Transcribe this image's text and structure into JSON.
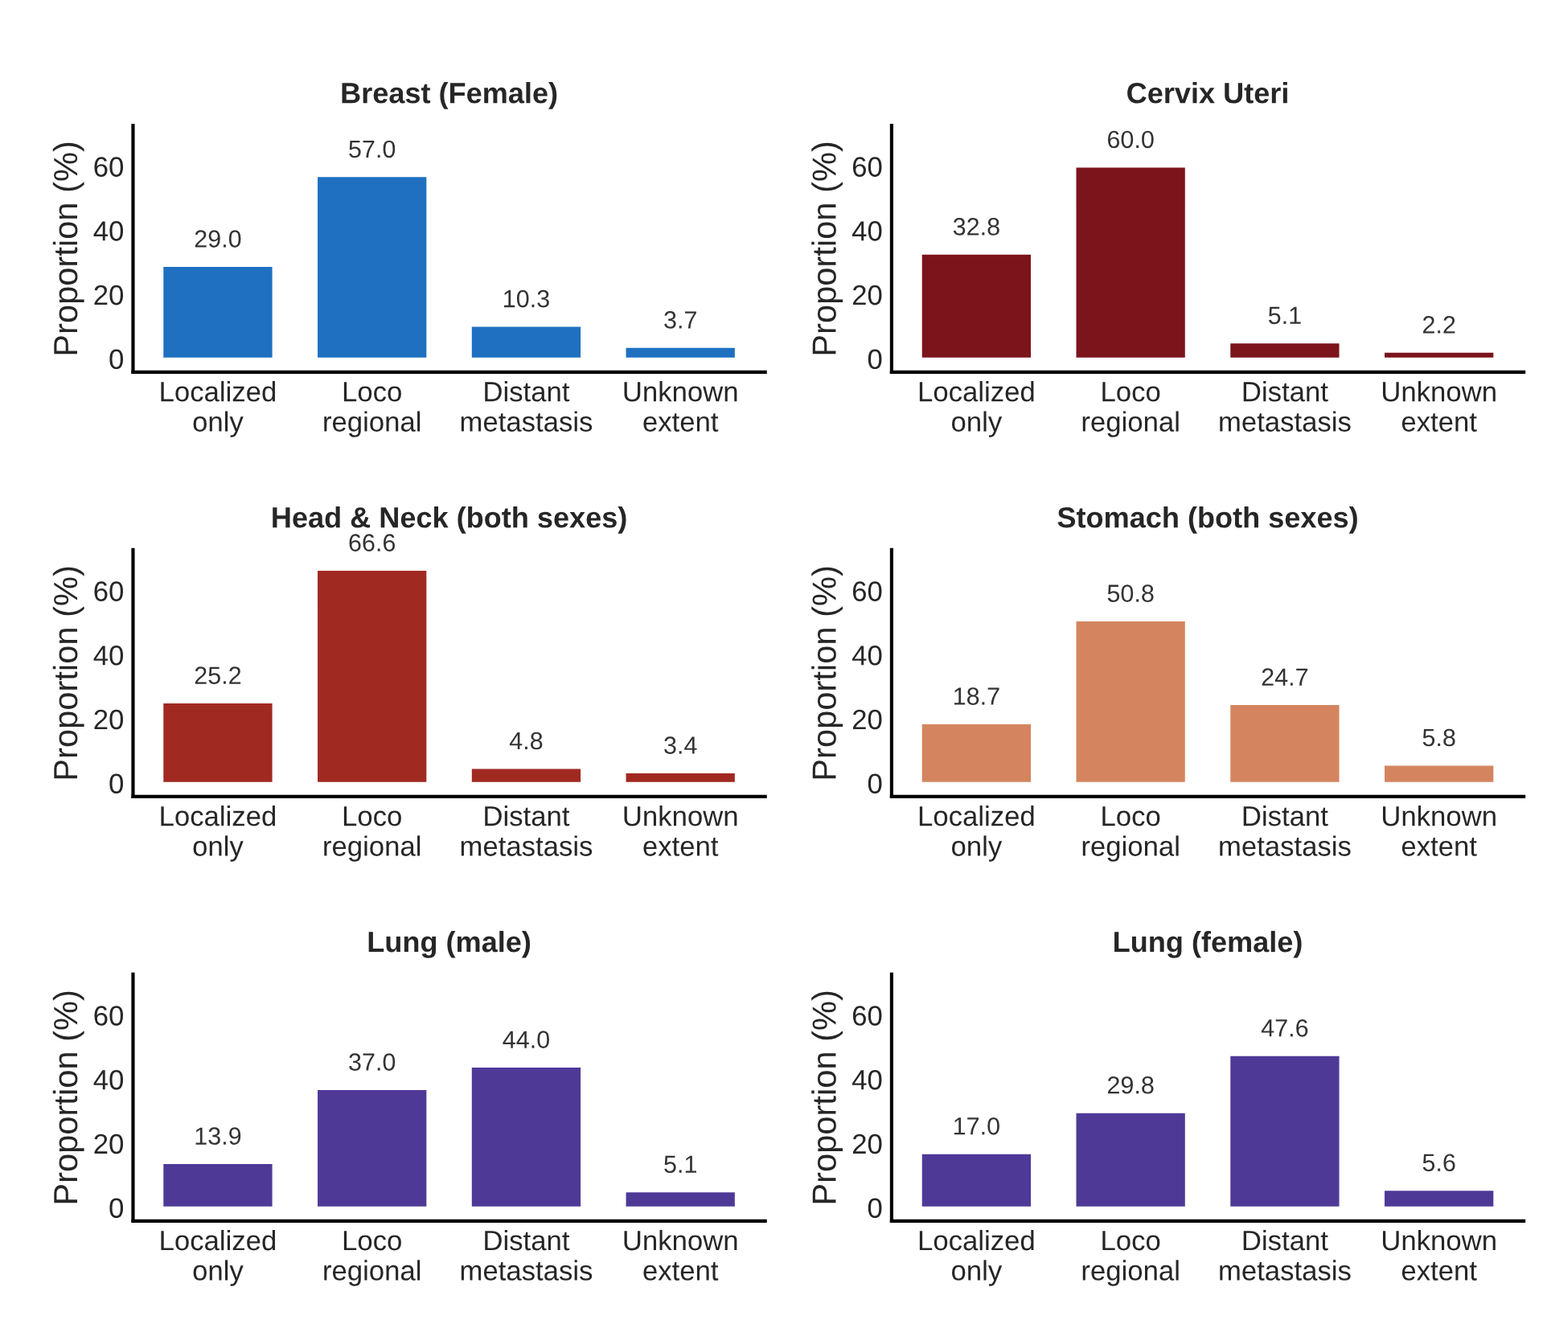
{
  "chart_data": [
    {
      "type": "bar",
      "title": "Breast (Female)",
      "ylabel": "Proportion (%)",
      "categories": [
        "Localized only",
        "Loco regional",
        "Distant metastasis",
        "Unknown extent"
      ],
      "values": [
        29.0,
        57.0,
        10.3,
        3.7
      ],
      "value_labels": [
        "29.0",
        "57.0",
        "10.3",
        "3.7"
      ],
      "color": "#1f70c1",
      "ylim": [
        -4.2,
        72.8
      ],
      "yticks": [
        0,
        20,
        40,
        60
      ],
      "grid": false,
      "legend": false
    },
    {
      "type": "bar",
      "title": "Cervix Uteri",
      "ylabel": "Proportion (%)",
      "categories": [
        "Localized only",
        "Loco regional",
        "Distant metastasis",
        "Unknown extent"
      ],
      "values": [
        32.8,
        60.0,
        5.1,
        2.2
      ],
      "value_labels": [
        "32.8",
        "60.0",
        "5.1",
        "2.2"
      ],
      "color": "#7b151b",
      "ylim": [
        -4.2,
        72.8
      ],
      "yticks": [
        0,
        20,
        40,
        60
      ],
      "grid": false,
      "legend": false
    },
    {
      "type": "bar",
      "title": "Head & Neck (both sexes)",
      "ylabel": "Proportion (%)",
      "categories": [
        "Localized only",
        "Loco regional",
        "Distant metastasis",
        "Unknown extent"
      ],
      "values": [
        25.2,
        66.6,
        4.8,
        3.4
      ],
      "value_labels": [
        "25.2",
        "66.6",
        "4.8",
        "3.4"
      ],
      "color": "#a02922",
      "ylim": [
        -4.2,
        72.8
      ],
      "yticks": [
        0,
        20,
        40,
        60
      ],
      "grid": false,
      "legend": false
    },
    {
      "type": "bar",
      "title": "Stomach (both sexes)",
      "ylabel": "Proportion (%)",
      "categories": [
        "Localized only",
        "Loco regional",
        "Distant metastasis",
        "Unknown extent"
      ],
      "values": [
        18.7,
        50.8,
        24.7,
        5.8
      ],
      "value_labels": [
        "18.7",
        "50.8",
        "24.7",
        "5.8"
      ],
      "color": "#d4855f",
      "ylim": [
        -4.2,
        72.8
      ],
      "yticks": [
        0,
        20,
        40,
        60
      ],
      "grid": false,
      "legend": false
    },
    {
      "type": "bar",
      "title": "Lung (male)",
      "ylabel": "Proportion (%)",
      "categories": [
        "Localized only",
        "Loco regional",
        "Distant metastasis",
        "Unknown extent"
      ],
      "values": [
        13.9,
        37.0,
        44.0,
        5.1
      ],
      "value_labels": [
        "13.9",
        "37.0",
        "44.0",
        "5.1"
      ],
      "color": "#4f3997",
      "ylim": [
        -4.2,
        72.8
      ],
      "yticks": [
        0,
        20,
        40,
        60
      ],
      "grid": false,
      "legend": false
    },
    {
      "type": "bar",
      "title": "Lung (female)",
      "ylabel": "Proportion (%)",
      "categories": [
        "Localized only",
        "Loco regional",
        "Distant metastasis",
        "Unknown extent"
      ],
      "values": [
        17.0,
        29.8,
        47.6,
        5.6
      ],
      "value_labels": [
        "17.0",
        "29.8",
        "47.6",
        "5.6"
      ],
      "color": "#4f3997",
      "ylim": [
        -4.2,
        72.8
      ],
      "yticks": [
        0,
        20,
        40,
        60
      ],
      "grid": false,
      "legend": false
    }
  ]
}
